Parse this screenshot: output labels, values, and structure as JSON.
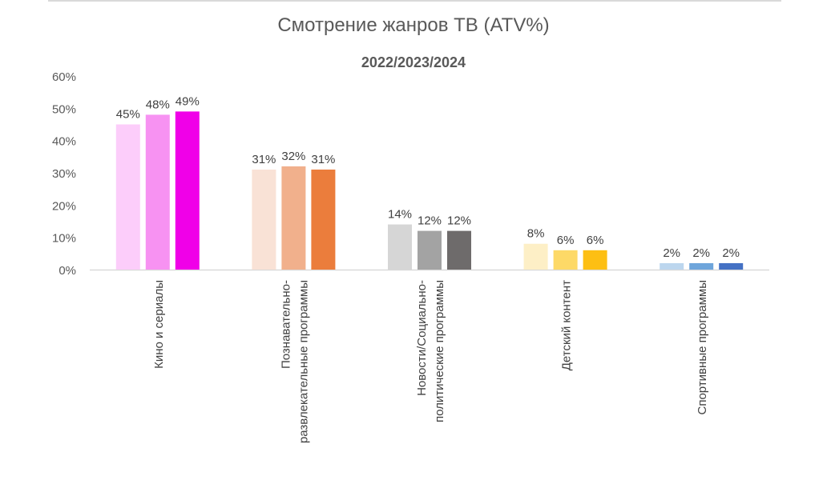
{
  "chart_data": {
    "type": "bar",
    "title": "Смотрение жанров ТВ (ATV%)",
    "subtitle": "2022/2023/2024",
    "xlabel": "",
    "ylabel": "",
    "ylim": [
      0,
      60
    ],
    "yticks": [
      "0%",
      "10%",
      "20%",
      "30%",
      "40%",
      "50%",
      "60%"
    ],
    "grid": false,
    "legend": "none",
    "categories": [
      "Кино и сериалы",
      "Познавательно-развлекательные программы",
      "Новости/Социально-политические программы",
      "Детский контент",
      "Спортивные программы"
    ],
    "category_label_lines": [
      [
        "Кино и сериалы"
      ],
      [
        "Познавательно-",
        "развлекательные программы"
      ],
      [
        "Новости/Социально-",
        "политические программы"
      ],
      [
        "Детский контент"
      ],
      [
        "Спортивные программы"
      ]
    ],
    "series_years": [
      "2022",
      "2023",
      "2024"
    ],
    "values": [
      [
        45,
        48,
        49
      ],
      [
        31,
        32,
        31
      ],
      [
        14,
        12,
        12
      ],
      [
        8,
        6,
        6
      ],
      [
        2,
        2,
        2
      ]
    ],
    "value_labels": [
      [
        "45%",
        "48%",
        "49%"
      ],
      [
        "31%",
        "32%",
        "31%"
      ],
      [
        "14%",
        "12%",
        "12%"
      ],
      [
        "8%",
        "6%",
        "6%"
      ],
      [
        "2%",
        "2%",
        "2%"
      ]
    ],
    "colors": [
      [
        "#fccdfa",
        "#f792f2",
        "#f000e8"
      ],
      [
        "#f9e2d6",
        "#f1b08c",
        "#eb7d3c"
      ],
      [
        "#d6d6d6",
        "#a3a3a3",
        "#6e6b6b"
      ],
      [
        "#fdefc6",
        "#fdd967",
        "#fdbf13"
      ],
      [
        "#bcd6ee",
        "#6ea5db",
        "#4471c4"
      ]
    ]
  }
}
